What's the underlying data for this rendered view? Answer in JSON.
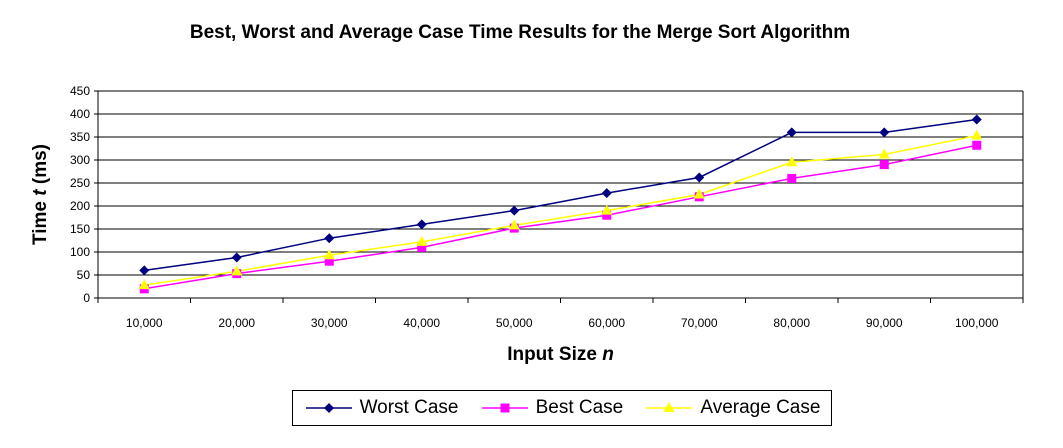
{
  "chart_data": {
    "type": "line",
    "title": "Best, Worst and Average Case Time Results for the Merge Sort Algorithm",
    "xlabel_main": "Input Size ",
    "xlabel_var": "n",
    "ylabel_main": "Time ",
    "ylabel_var": "t",
    "ylabel_unit": " (ms)",
    "categories": [
      "10,000",
      "20,000",
      "30,000",
      "40,000",
      "50,000",
      "60,000",
      "70,000",
      "80,000",
      "90,000",
      "100,000"
    ],
    "ylim": [
      0,
      450
    ],
    "yticks": [
      0,
      50,
      100,
      150,
      200,
      250,
      300,
      350,
      400,
      450
    ],
    "grid": "horizontal",
    "legend_position": "bottom",
    "series": [
      {
        "name": "Worst Case",
        "color": "#000080",
        "marker": "diamond",
        "values": [
          60,
          88,
          130,
          160,
          190,
          228,
          262,
          360,
          360,
          388
        ]
      },
      {
        "name": "Best Case",
        "color": "#FF00FF",
        "marker": "square",
        "values": [
          20,
          53,
          80,
          110,
          152,
          180,
          220,
          260,
          290,
          332
        ]
      },
      {
        "name": "Average Case",
        "color": "#FFFF00",
        "marker": "triangle",
        "values": [
          28,
          58,
          93,
          122,
          158,
          190,
          225,
          295,
          312,
          353
        ]
      }
    ]
  }
}
